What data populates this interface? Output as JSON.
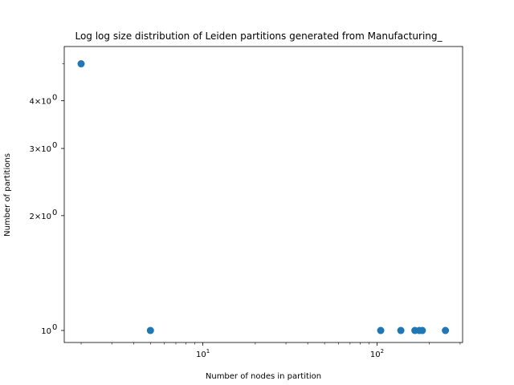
{
  "chart_data": {
    "type": "scatter",
    "title": "Log log size distribution of Leiden partitions generated from Manufacturing_",
    "xlabel": "Number of nodes in partition",
    "ylabel": "Number of partitions",
    "xscale": "log",
    "yscale": "log",
    "xlim": [
      1.6,
      310
    ],
    "ylim": [
      0.93,
      5.55
    ],
    "grid": false,
    "marker_color": "#1f77b4",
    "points": [
      {
        "x": 2,
        "y": 5
      },
      {
        "x": 5,
        "y": 1
      },
      {
        "x": 105,
        "y": 1
      },
      {
        "x": 137,
        "y": 1
      },
      {
        "x": 165,
        "y": 1
      },
      {
        "x": 175,
        "y": 1
      },
      {
        "x": 182,
        "y": 1
      },
      {
        "x": 247,
        "y": 1
      }
    ],
    "x_major_ticks": [
      {
        "value": 10,
        "base": "10",
        "exp": "1"
      },
      {
        "value": 100,
        "base": "10",
        "exp": "2"
      }
    ],
    "x_minor_ticks": [
      2,
      3,
      4,
      5,
      6,
      7,
      8,
      9,
      20,
      30,
      40,
      50,
      60,
      70,
      80,
      90,
      200,
      300
    ],
    "y_ticks": [
      {
        "value": 1,
        "mant": "10",
        "exp": "0"
      },
      {
        "value": 2,
        "mant": "2×10",
        "exp": "0"
      },
      {
        "value": 3,
        "mant": "3×10",
        "exp": "0"
      },
      {
        "value": 4,
        "mant": "4×10",
        "exp": "0"
      }
    ],
    "y_minor_ticks": [
      5
    ]
  }
}
